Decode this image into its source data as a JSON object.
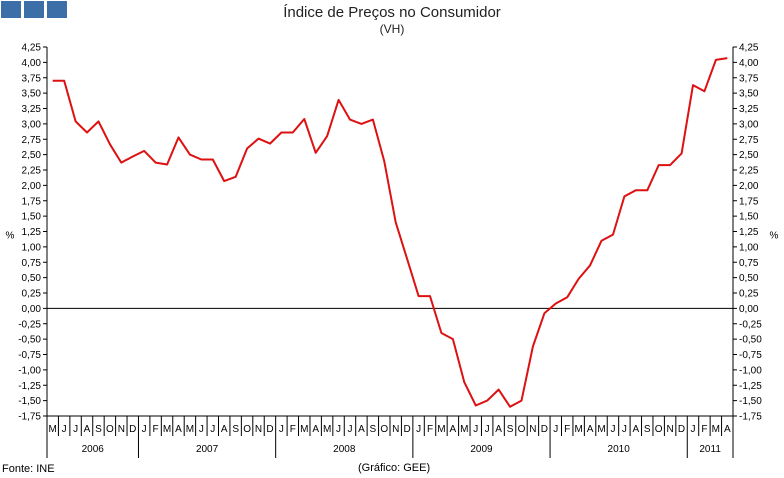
{
  "header": {
    "title": "Índice de Preços no Consumidor",
    "subtitle": "(VH)"
  },
  "footer": {
    "source": "Fonte: INE",
    "credit": "(Gráfico: GEE)"
  },
  "colors": {
    "series": "#dd1111",
    "logo": "#3c6fa8"
  },
  "chart_data": {
    "type": "line",
    "title": "Índice de Preços no Consumidor",
    "subtitle": "(VH)",
    "ylabel": "%",
    "ylabel_right": "%",
    "ylim": [
      -1.75,
      4.25
    ],
    "ytick_labels": [
      "4,25",
      "4,00",
      "3,75",
      "3,50",
      "3,25",
      "3,00",
      "2,75",
      "2,50",
      "2,25",
      "2,00",
      "1,75",
      "1,50",
      "1,25",
      "1,00",
      "0,75",
      "0,50",
      "0,25",
      "0,00",
      "-0,25",
      "-0,50",
      "-0,75",
      "-1,00",
      "-1,25",
      "-1,50",
      "-1,75"
    ],
    "month_labels": [
      "M",
      "J",
      "J",
      "A",
      "S",
      "O",
      "N",
      "D",
      "J",
      "F",
      "M",
      "A",
      "M",
      "J",
      "J",
      "A",
      "S",
      "O",
      "N",
      "D",
      "J",
      "F",
      "M",
      "A",
      "M",
      "J",
      "J",
      "A",
      "S",
      "O",
      "N",
      "D",
      "J",
      "F",
      "M",
      "A",
      "M",
      "J",
      "J",
      "A",
      "S",
      "O",
      "N",
      "D",
      "J",
      "F",
      "M",
      "A",
      "M",
      "J",
      "J",
      "A",
      "S",
      "O",
      "N",
      "D",
      "J",
      "F",
      "M",
      "A"
    ],
    "years": [
      {
        "label": "2006",
        "start": 0,
        "count": 8
      },
      {
        "label": "2007",
        "start": 8,
        "count": 12
      },
      {
        "label": "2008",
        "start": 20,
        "count": 12
      },
      {
        "label": "2009",
        "start": 32,
        "count": 12
      },
      {
        "label": "2010",
        "start": 44,
        "count": 12
      },
      {
        "label": "2011",
        "start": 56,
        "count": 4
      }
    ],
    "x_start": "2006-05",
    "grid": false,
    "series": [
      {
        "values": [
          3.7,
          3.7,
          3.04,
          2.86,
          3.04,
          2.67,
          2.37,
          2.47,
          2.56,
          2.37,
          2.34,
          2.78,
          2.5,
          2.42,
          2.42,
          2.07,
          2.14,
          2.6,
          2.76,
          2.68,
          2.86,
          2.86,
          3.08,
          2.53,
          2.8,
          3.39,
          3.07,
          3.0,
          3.07,
          2.39,
          1.4,
          0.8,
          0.2,
          0.2,
          -0.4,
          -0.5,
          -1.2,
          -1.58,
          -1.5,
          -1.32,
          -1.6,
          -1.5,
          -0.62,
          -0.08,
          0.08,
          0.18,
          0.48,
          0.7,
          1.1,
          1.2,
          1.82,
          1.92,
          1.92,
          2.33,
          2.33,
          2.52,
          3.63,
          3.53,
          4.04,
          4.07
        ]
      }
    ]
  }
}
